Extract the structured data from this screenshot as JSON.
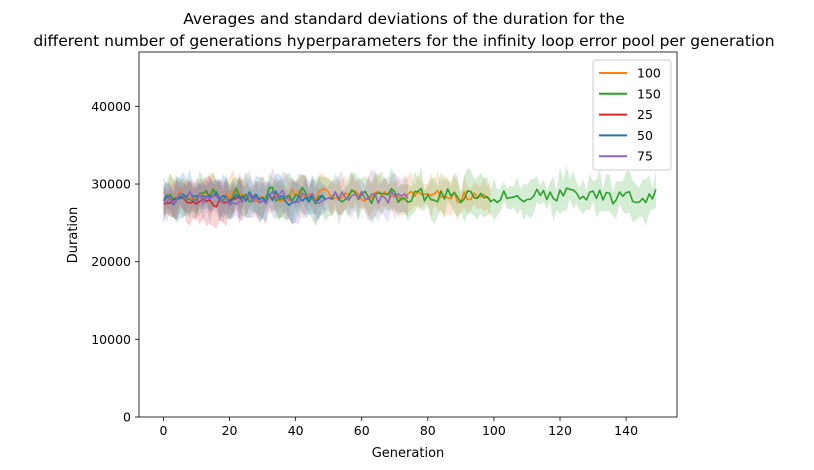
{
  "chart_data": {
    "type": "line",
    "title": "Averages and standard deviations of the duration for the\ndifferent number of generations hyperparameters for the infinity loop error pool per generation",
    "xlabel": "Generation",
    "ylabel": "Duration",
    "xlim": [
      -7.4,
      155.4
    ],
    "ylim": [
      0,
      47000
    ],
    "xticks": [
      0,
      20,
      40,
      60,
      80,
      100,
      120,
      140
    ],
    "yticks": [
      0,
      10000,
      20000,
      30000,
      40000
    ],
    "legend_position": "top-right",
    "grid": false,
    "series": [
      {
        "name": "100",
        "color": "#ff7f0e",
        "length": 100,
        "base": 28500,
        "amp": 700,
        "std": 2000,
        "seed": 11
      },
      {
        "name": "150",
        "color": "#2ca02c",
        "length": 150,
        "base": 28500,
        "amp": 800,
        "std": 2100,
        "seed": 23
      },
      {
        "name": "25",
        "color": "#d62728",
        "length": 25,
        "base": 28000,
        "amp": 700,
        "std": 2200,
        "seed": 37
      },
      {
        "name": "50",
        "color": "#1f77b4",
        "length": 50,
        "base": 28200,
        "amp": 700,
        "std": 2100,
        "seed": 41
      },
      {
        "name": "75",
        "color": "#9467bd",
        "length": 75,
        "base": 28300,
        "amp": 800,
        "std": 2300,
        "seed": 53
      }
    ]
  }
}
